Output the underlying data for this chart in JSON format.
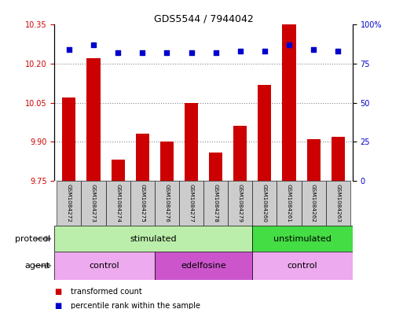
{
  "title": "GDS5544 / 7944042",
  "samples": [
    "GSM1084272",
    "GSM1084273",
    "GSM1084274",
    "GSM1084275",
    "GSM1084276",
    "GSM1084277",
    "GSM1084278",
    "GSM1084279",
    "GSM1084260",
    "GSM1084261",
    "GSM1084262",
    "GSM1084263"
  ],
  "bar_values": [
    10.07,
    10.22,
    9.83,
    9.93,
    9.9,
    10.05,
    9.86,
    9.96,
    10.12,
    10.35,
    9.91,
    9.92
  ],
  "dot_values": [
    84,
    87,
    82,
    82,
    82,
    82,
    82,
    83,
    83,
    87,
    84,
    83
  ],
  "ylim_left": [
    9.75,
    10.35
  ],
  "ylim_right": [
    0,
    100
  ],
  "yticks_left": [
    9.75,
    9.9,
    10.05,
    10.2,
    10.35
  ],
  "yticks_right": [
    0,
    25,
    50,
    75,
    100
  ],
  "ytick_labels_right": [
    "0",
    "25",
    "50",
    "75",
    "100%"
  ],
  "bar_color": "#cc0000",
  "dot_color": "#0000cc",
  "bar_bottom": 9.75,
  "protocol_groups": [
    {
      "label": "stimulated",
      "start": 0,
      "end": 8,
      "color": "#bbeeaa"
    },
    {
      "label": "unstimulated",
      "start": 8,
      "end": 12,
      "color": "#44dd44"
    }
  ],
  "agent_groups": [
    {
      "label": "control",
      "start": 0,
      "end": 4,
      "color": "#eeaaee"
    },
    {
      "label": "edelfosine",
      "start": 4,
      "end": 8,
      "color": "#cc55cc"
    },
    {
      "label": "control",
      "start": 8,
      "end": 12,
      "color": "#eeaaee"
    }
  ],
  "legend_items": [
    {
      "label": "transformed count",
      "color": "#cc0000"
    },
    {
      "label": "percentile rank within the sample",
      "color": "#0000cc"
    }
  ],
  "sample_box_color": "#cccccc",
  "background_color": "#ffffff",
  "grid_color": "#888888",
  "left_tick_color": "#cc0000",
  "right_tick_color": "#0000cc",
  "arrow_color": "#888888"
}
